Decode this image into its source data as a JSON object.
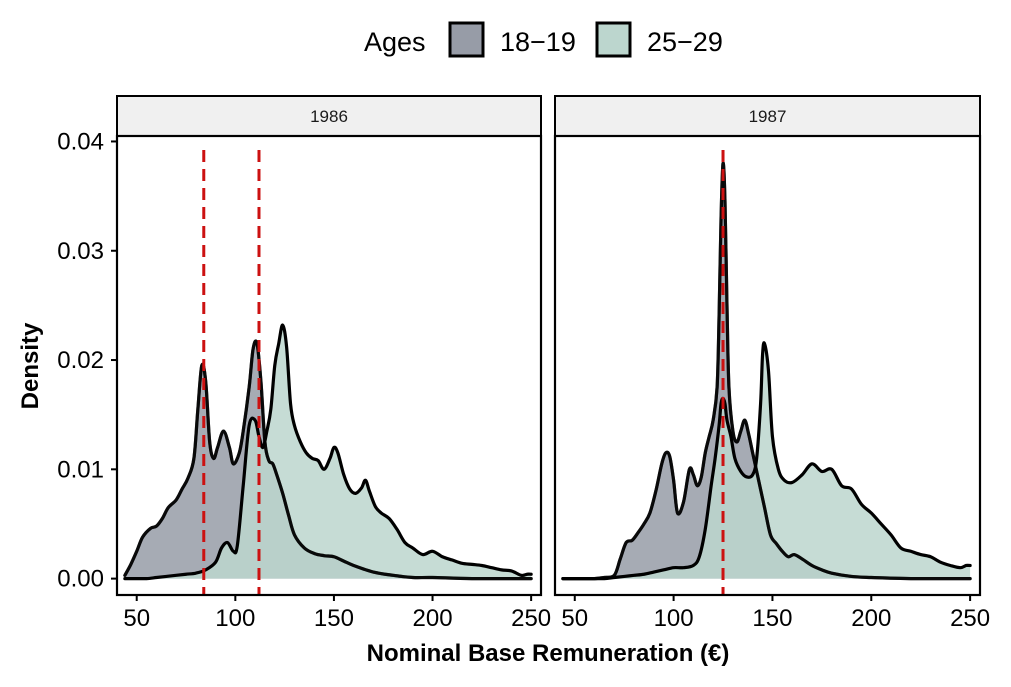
{
  "chart_data": {
    "type": "area",
    "ylabel": "Density",
    "xlabel": "Nominal Base Remuneration (€)",
    "xlim": [
      40,
      255
    ],
    "ylim": [
      -0.0015,
      0.0405
    ],
    "x_ticks": [
      50,
      100,
      150,
      200,
      250
    ],
    "y_ticks": [
      0.0,
      0.01,
      0.02,
      0.03,
      0.04
    ],
    "y_tick_labels": [
      "0.00",
      "0.01",
      "0.02",
      "0.03",
      "0.04"
    ],
    "legend": {
      "title": "Ages",
      "position": "top",
      "items": [
        {
          "label": "18−19",
          "color": "#979ca7"
        },
        {
          "label": "25−29",
          "color": "#bcd6ce"
        }
      ]
    },
    "colors": {
      "series_18_19": "#979ca7",
      "series_25_29": "#bcd6ce",
      "overlap": "#9cb0aa",
      "reference_line": "#cc1111",
      "strip_background": "#f0f0f0"
    },
    "panels": [
      {
        "label": "1986",
        "reference_lines": [
          84,
          112
        ],
        "series": [
          {
            "name": "18−19",
            "x": [
              44,
              47,
              50,
              53,
              57,
              60,
              63,
              66,
              70,
              73,
              76,
              79,
              81,
              83,
              85,
              87,
              89,
              91,
              94,
              97,
              99,
              102,
              104,
              107,
              109,
              111,
              113,
              115,
              117,
              119,
              121,
              124,
              127,
              130,
              135,
              140,
              145,
              150,
              155,
              160,
              170,
              180,
              190,
              200,
              220,
              250
            ],
            "values": [
              0.0003,
              0.0013,
              0.0025,
              0.0038,
              0.0046,
              0.0048,
              0.0055,
              0.0065,
              0.0072,
              0.0082,
              0.0092,
              0.011,
              0.0155,
              0.0195,
              0.018,
              0.0125,
              0.011,
              0.012,
              0.0135,
              0.012,
              0.0105,
              0.0115,
              0.0135,
              0.0175,
              0.021,
              0.0215,
              0.018,
              0.0125,
              0.0108,
              0.0105,
              0.0095,
              0.0078,
              0.0058,
              0.004,
              0.0028,
              0.0023,
              0.0021,
              0.002,
              0.0016,
              0.0012,
              0.0006,
              0.0003,
              0.0001,
              0.0001,
              0.0,
              0.0
            ]
          },
          {
            "name": "25−29",
            "x": [
              44,
              50,
              55,
              60,
              65,
              70,
              75,
              80,
              85,
              90,
              93,
              96,
              99,
              101,
              104,
              107,
              110,
              112,
              114,
              116,
              118,
              120,
              122,
              124,
              126,
              128,
              130,
              133,
              136,
              139,
              142,
              145,
              148,
              150,
              152,
              155,
              158,
              161,
              164,
              166,
              168,
              171,
              174,
              178,
              182,
              186,
              190,
              195,
              200,
              205,
              210,
              215,
              220,
              225,
              230,
              235,
              240,
              245,
              248,
              250
            ],
            "values": [
              0.0,
              0.0,
              0.0,
              0.0001,
              0.0002,
              0.0003,
              0.0004,
              0.0005,
              0.0008,
              0.0015,
              0.0028,
              0.0033,
              0.0025,
              0.003,
              0.0085,
              0.014,
              0.0145,
              0.013,
              0.012,
              0.0135,
              0.0155,
              0.0195,
              0.0215,
              0.0232,
              0.0212,
              0.016,
              0.014,
              0.0125,
              0.0115,
              0.011,
              0.0108,
              0.01,
              0.011,
              0.012,
              0.0115,
              0.0095,
              0.0082,
              0.0078,
              0.0083,
              0.009,
              0.008,
              0.0066,
              0.006,
              0.0055,
              0.0045,
              0.0033,
              0.0028,
              0.0022,
              0.0025,
              0.002,
              0.0017,
              0.0014,
              0.0013,
              0.0012,
              0.001,
              0.0008,
              0.0007,
              0.0003,
              0.0004,
              0.0004
            ]
          }
        ]
      },
      {
        "label": "1987",
        "reference_lines": [
          125
        ],
        "series": [
          {
            "name": "18−19",
            "x": [
              44,
              50,
              55,
              60,
              65,
              70,
              73,
              76,
              79,
              82,
              85,
              88,
              91,
              94,
              96,
              98,
              100,
              102,
              105,
              108,
              110,
              112,
              114,
              116,
              118,
              120,
              122,
              123,
              124,
              125,
              126,
              127,
              128,
              130,
              132,
              134,
              136,
              138,
              140,
              143,
              146,
              149,
              152,
              155,
              158,
              161,
              165,
              170,
              175,
              180,
              190,
              200,
              220,
              250
            ],
            "values": [
              0.0,
              0.0,
              0.0,
              0.0,
              0.0001,
              0.0003,
              0.0018,
              0.0033,
              0.0035,
              0.0042,
              0.005,
              0.006,
              0.008,
              0.0105,
              0.0115,
              0.0112,
              0.009,
              0.006,
              0.007,
              0.01,
              0.0095,
              0.0085,
              0.0093,
              0.0115,
              0.013,
              0.0145,
              0.0175,
              0.024,
              0.033,
              0.038,
              0.0345,
              0.025,
              0.0175,
              0.0135,
              0.0125,
              0.0135,
              0.0145,
              0.0132,
              0.0115,
              0.009,
              0.0065,
              0.004,
              0.0032,
              0.0025,
              0.002,
              0.0022,
              0.0018,
              0.0012,
              0.0008,
              0.0005,
              0.0002,
              0.0001,
              0.0,
              0.0
            ]
          },
          {
            "name": "25−29",
            "x": [
              44,
              50,
              55,
              60,
              65,
              70,
              75,
              80,
              85,
              90,
              95,
              100,
              105,
              110,
              113,
              116,
              119,
              121,
              123,
              124,
              125,
              126,
              127,
              129,
              131,
              134,
              137,
              140,
              142,
              144,
              145,
              146,
              148,
              150,
              153,
              156,
              160,
              165,
              170,
              175,
              180,
              185,
              190,
              195,
              200,
              205,
              210,
              215,
              220,
              225,
              230,
              235,
              240,
              245,
              248,
              250
            ],
            "values": [
              0.0,
              0.0,
              0.0,
              0.0,
              0.0,
              0.0001,
              0.0002,
              0.0003,
              0.0004,
              0.0006,
              0.0008,
              0.001,
              0.001,
              0.0012,
              0.002,
              0.0045,
              0.0085,
              0.011,
              0.014,
              0.016,
              0.0165,
              0.016,
              0.0145,
              0.013,
              0.011,
              0.0098,
              0.0093,
              0.0095,
              0.011,
              0.016,
              0.0205,
              0.0215,
              0.019,
              0.013,
              0.01,
              0.009,
              0.0088,
              0.0095,
              0.0105,
              0.0098,
              0.01,
              0.0085,
              0.0082,
              0.0068,
              0.006,
              0.005,
              0.004,
              0.0028,
              0.0025,
              0.0022,
              0.002,
              0.0015,
              0.0012,
              0.001,
              0.0012,
              0.0012
            ]
          }
        ]
      }
    ]
  }
}
